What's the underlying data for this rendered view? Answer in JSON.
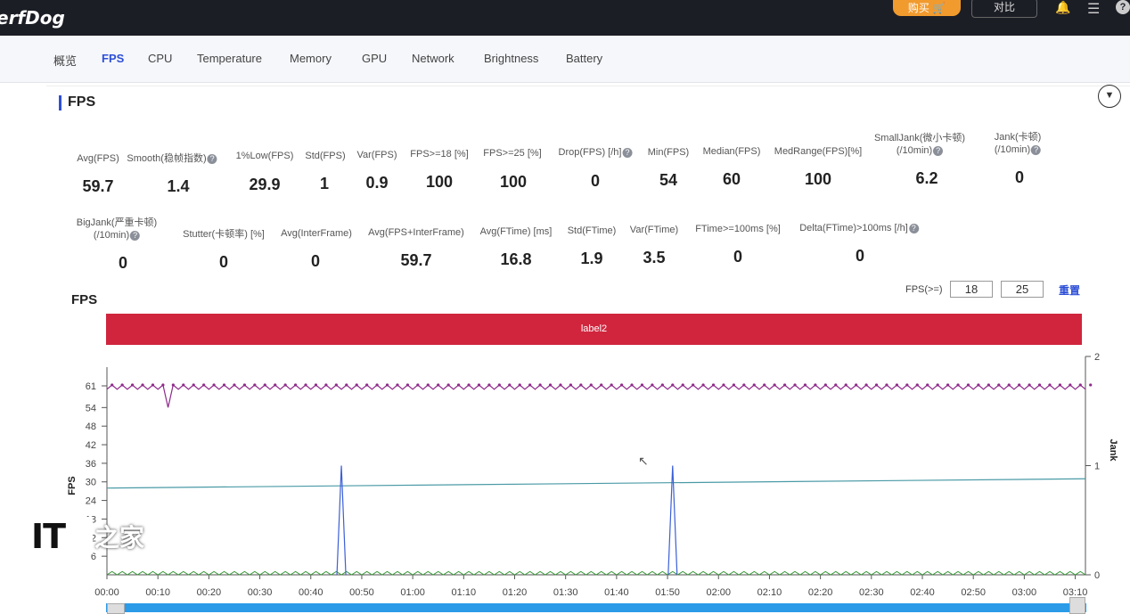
{
  "app": {
    "logo": "erfDog",
    "buy_label": "购买",
    "compare_label": "对比",
    "icons": [
      "bell-icon",
      "menu-icon",
      "help-icon"
    ]
  },
  "tabs": [
    "概览",
    "FPS",
    "CPU",
    "Temperature",
    "Memory",
    "GPU",
    "Network",
    "Brightness",
    "Battery"
  ],
  "active_tab": "FPS",
  "section": {
    "title": "FPS"
  },
  "stats_row1": [
    {
      "label": "Avg(FPS)",
      "value": "59.7"
    },
    {
      "label": "Smooth(稳帧指数)",
      "value": "1.4"
    },
    {
      "label": "1%Low(FPS)",
      "value": "29.9"
    },
    {
      "label": "Std(FPS)",
      "value": "1"
    },
    {
      "label": "Var(FPS)",
      "value": "0.9"
    },
    {
      "label": "FPS>=18 [%]",
      "value": "100"
    },
    {
      "label": "FPS>=25 [%]",
      "value": "100"
    },
    {
      "label": "Drop(FPS) [/h]",
      "value": "0"
    },
    {
      "label": "Min(FPS)",
      "value": "54"
    },
    {
      "label": "Median(FPS)",
      "value": "60"
    },
    {
      "label": "MedRange(FPS)[%]",
      "value": "100"
    },
    {
      "label": "SmallJank(微小卡顿)",
      "label2": "(/10min)",
      "value": "6.2"
    },
    {
      "label": "Jank(卡顿)",
      "label2": "(/10min)",
      "value": "0"
    }
  ],
  "stats_row2": [
    {
      "label": "BigJank(严重卡顿)",
      "label2": "(/10min)",
      "value": "0"
    },
    {
      "label": "Stutter(卡顿率) [%]",
      "value": "0"
    },
    {
      "label": "Avg(InterFrame)",
      "value": "0"
    },
    {
      "label": "Avg(FPS+InterFrame)",
      "value": "59.7"
    },
    {
      "label": "Avg(FTime) [ms]",
      "value": "16.8"
    },
    {
      "label": "Std(FTime)",
      "value": "1.9"
    },
    {
      "label": "Var(FTime)",
      "value": "3.5"
    },
    {
      "label": "FTime>=100ms [%]",
      "value": "0"
    },
    {
      "label": "Delta(FTime)>100ms [/h]",
      "value": "0"
    }
  ],
  "chart_header": {
    "title": "FPS",
    "fps_ge_label": "FPS(>=)",
    "threshold1": "18",
    "threshold2": "25",
    "reset_label": "重置",
    "label_bar": "label2"
  },
  "chart_data": {
    "type": "line",
    "ylabel": "FPS",
    "y2label": "Jank",
    "ylim": [
      0,
      65
    ],
    "y2lim": [
      0,
      2
    ],
    "yticks": [
      "61",
      "54",
      "48",
      "42",
      "36",
      "30",
      "24",
      "18",
      "12",
      "6"
    ],
    "y2ticks": [
      "0",
      "1",
      "2"
    ],
    "xticks": [
      "00:00",
      "00:10",
      "00:20",
      "00:30",
      "00:40",
      "00:50",
      "01:00",
      "01:10",
      "01:20",
      "01:30",
      "01:40",
      "01:50",
      "02:00",
      "02:10",
      "02:20",
      "02:30",
      "02:40",
      "02:50",
      "03:00",
      "03:10"
    ],
    "series": [
      {
        "name": "FPS",
        "color": "#8e2a8a",
        "baseline": 60.5,
        "dips": [
          {
            "t": 12,
            "v": 54
          }
        ]
      },
      {
        "name": "",
        "color": "#4a9aa6",
        "from": 28,
        "to": 31
      },
      {
        "name": "Jank",
        "color": "#3b5fd6",
        "spikes": [
          {
            "t": 46,
            "v": 1
          },
          {
            "t": 111,
            "v": 1
          }
        ]
      }
    ],
    "xrange_seconds": [
      0,
      192
    ]
  },
  "brand": {
    "it": "IT",
    "text": "之家"
  }
}
